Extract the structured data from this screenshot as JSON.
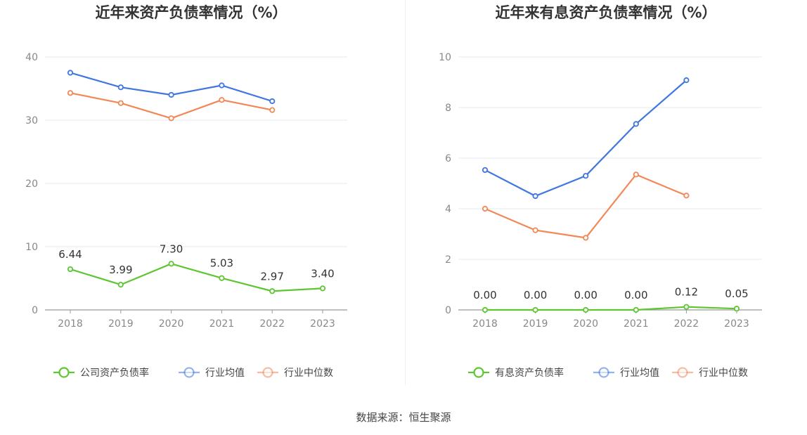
{
  "source": "数据来源：恒生聚源",
  "chart_data": [
    {
      "type": "line",
      "title": "近年来资产负债率情况（%）",
      "categories": [
        "2018",
        "2019",
        "2020",
        "2021",
        "2022",
        "2023"
      ],
      "ylim": [
        0,
        40
      ],
      "yticks": [
        0,
        10,
        20,
        30,
        40
      ],
      "grid": true,
      "legend_position": "bottom",
      "series": [
        {
          "name": "公司资产负债率",
          "color": "#5dc630",
          "values": [
            6.44,
            3.99,
            7.3,
            5.03,
            2.97,
            3.4
          ],
          "labels": [
            "6.44",
            "3.99",
            "7.30",
            "5.03",
            "2.97",
            "3.40"
          ]
        },
        {
          "name": "行业均值",
          "color": "#3f76e0",
          "values": [
            37.5,
            35.2,
            34.0,
            35.5,
            33.0,
            null
          ]
        },
        {
          "name": "行业中位数",
          "color": "#f28857",
          "values": [
            34.3,
            32.7,
            30.3,
            33.2,
            31.6,
            null
          ]
        }
      ]
    },
    {
      "type": "line",
      "title": "近年来有息资产负债率情况（%）",
      "categories": [
        "2018",
        "2019",
        "2020",
        "2021",
        "2022",
        "2023"
      ],
      "ylim": [
        0,
        10
      ],
      "yticks": [
        0,
        2,
        4,
        6,
        8,
        10
      ],
      "grid": true,
      "legend_position": "bottom",
      "series": [
        {
          "name": "有息资产负债率",
          "color": "#5dc630",
          "values": [
            0.0,
            0.0,
            0.0,
            0.0,
            0.12,
            0.05
          ],
          "labels": [
            "0.00",
            "0.00",
            "0.00",
            "0.00",
            "0.12",
            "0.05"
          ]
        },
        {
          "name": "行业均值",
          "color": "#3f76e0",
          "values": [
            5.53,
            4.5,
            5.3,
            7.35,
            9.08,
            null
          ]
        },
        {
          "name": "行业中位数",
          "color": "#f28857",
          "values": [
            4.0,
            3.15,
            2.85,
            5.35,
            4.52,
            null
          ]
        }
      ]
    }
  ]
}
